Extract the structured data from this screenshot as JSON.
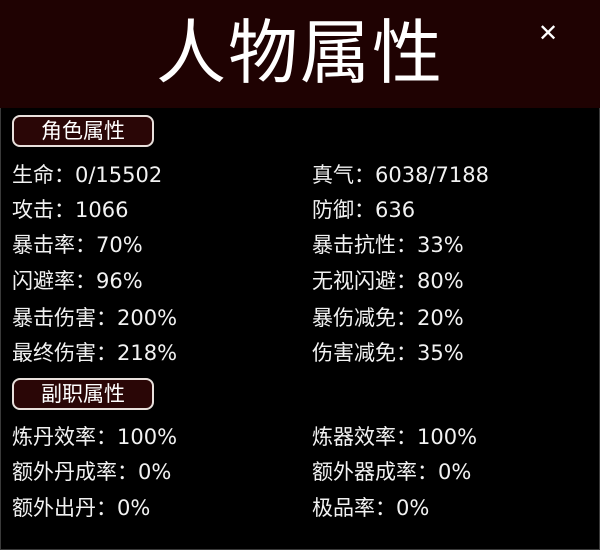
{
  "header": {
    "title": "人物属性",
    "close_icon": "close-icon"
  },
  "sections": [
    {
      "label": "角色属性",
      "rows": [
        {
          "left": {
            "label": "生命：",
            "value": "0/15502"
          },
          "right": {
            "label": "真气：",
            "value": "6038/7188"
          }
        },
        {
          "left": {
            "label": "攻击：",
            "value": "1066"
          },
          "right": {
            "label": "防御：",
            "value": "636"
          }
        },
        {
          "left": {
            "label": "暴击率：",
            "value": "70%"
          },
          "right": {
            "label": "暴击抗性：",
            "value": "33%"
          }
        },
        {
          "left": {
            "label": "闪避率：",
            "value": "96%"
          },
          "right": {
            "label": "无视闪避：",
            "value": "80%"
          }
        },
        {
          "left": {
            "label": "暴击伤害：",
            "value": "200%"
          },
          "right": {
            "label": "暴伤减免：",
            "value": "20%"
          }
        },
        {
          "left": {
            "label": "最终伤害：",
            "value": "218%"
          },
          "right": {
            "label": "伤害减免：",
            "value": "35%"
          }
        }
      ]
    },
    {
      "label": "副职属性",
      "rows": [
        {
          "left": {
            "label": "炼丹效率：",
            "value": "100%"
          },
          "right": {
            "label": "炼器效率：",
            "value": "100%"
          }
        },
        {
          "left": {
            "label": "额外丹成率：",
            "value": "0%"
          },
          "right": {
            "label": "额外器成率：",
            "value": "0%"
          }
        },
        {
          "left": {
            "label": "额外出丹：",
            "value": "0%"
          },
          "right": {
            "label": "极品率：",
            "value": "0%"
          }
        }
      ]
    }
  ]
}
